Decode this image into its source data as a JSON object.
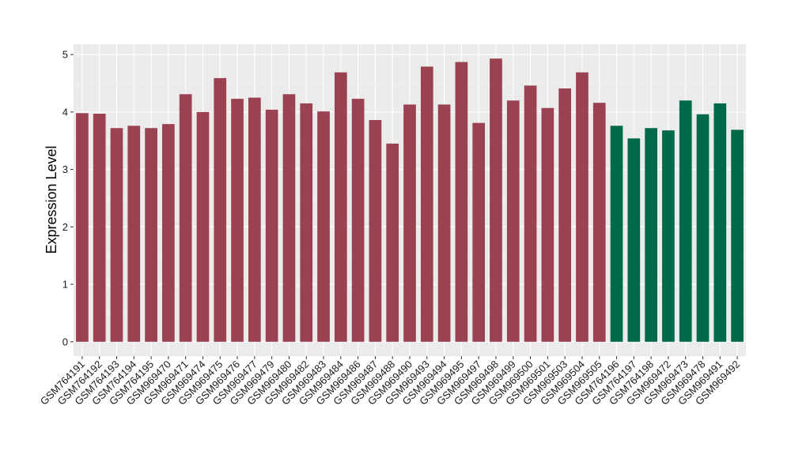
{
  "chart_data": {
    "type": "bar",
    "title": "",
    "xlabel": "",
    "ylabel": "Expression Level",
    "ylim": [
      -0.25,
      5.18
    ],
    "yticks": [
      0,
      1,
      2,
      3,
      4,
      5
    ],
    "grid": true,
    "background": "#ebebeb",
    "categories": [
      "GSM764191",
      "GSM764192",
      "GSM764193",
      "GSM764194",
      "GSM764195",
      "GSM969470",
      "GSM969471",
      "GSM969474",
      "GSM969475",
      "GSM969476",
      "GSM969477",
      "GSM969479",
      "GSM969480",
      "GSM969482",
      "GSM969483",
      "GSM969484",
      "GSM969486",
      "GSM969487",
      "GSM969488",
      "GSM969490",
      "GSM969493",
      "GSM969494",
      "GSM969495",
      "GSM969497",
      "GSM969498",
      "GSM969499",
      "GSM969500",
      "GSM969501",
      "GSM969503",
      "GSM969504",
      "GSM969505",
      "GSM764196",
      "GSM764197",
      "GSM764198",
      "GSM969472",
      "GSM969473",
      "GSM969478",
      "GSM969491",
      "GSM969492"
    ],
    "values": [
      3.98,
      3.97,
      3.72,
      3.76,
      3.72,
      3.79,
      4.31,
      4.0,
      4.59,
      4.23,
      4.25,
      4.04,
      4.31,
      4.15,
      4.01,
      4.69,
      4.23,
      3.86,
      3.45,
      4.13,
      4.79,
      4.13,
      4.87,
      3.81,
      4.93,
      4.2,
      4.46,
      4.07,
      4.41,
      4.69,
      4.16,
      3.76,
      3.54,
      3.72,
      3.68,
      4.2,
      3.96,
      4.15,
      3.69
    ],
    "group": [
      0,
      0,
      0,
      0,
      0,
      0,
      0,
      0,
      0,
      0,
      0,
      0,
      0,
      0,
      0,
      0,
      0,
      0,
      0,
      0,
      0,
      0,
      0,
      0,
      0,
      0,
      0,
      0,
      0,
      0,
      0,
      1,
      1,
      1,
      1,
      1,
      1,
      1,
      1
    ],
    "colors": [
      "#9b4250",
      "#00694a"
    ]
  }
}
